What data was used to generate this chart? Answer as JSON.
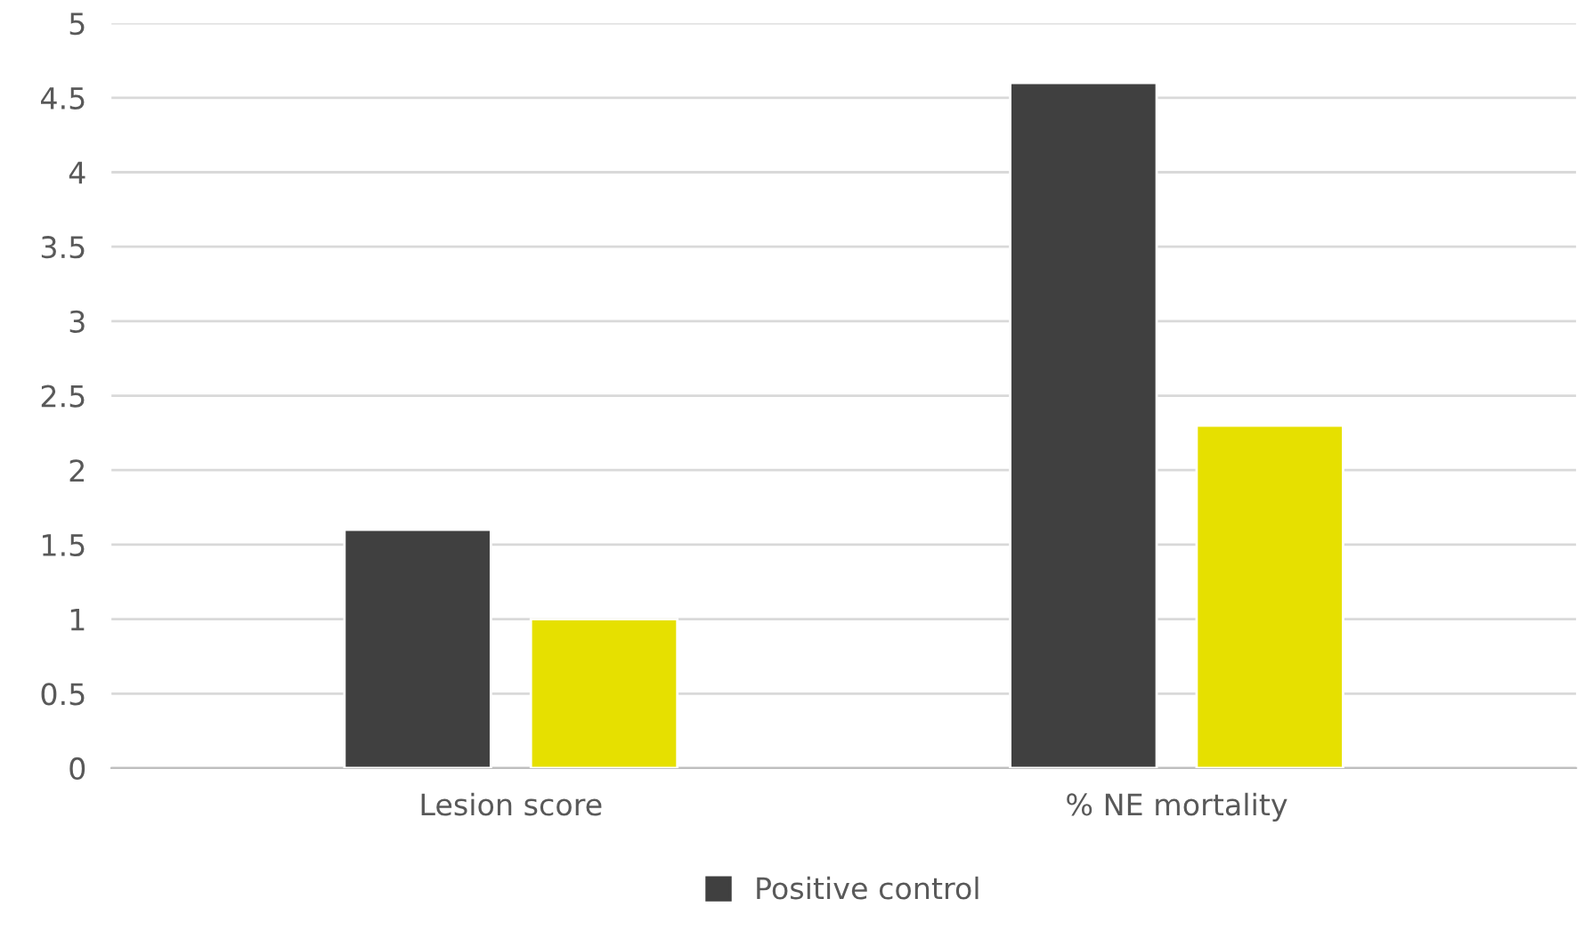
{
  "chart_data": {
    "type": "bar",
    "categories": [
      "Lesion score",
      "% NE mortality"
    ],
    "series": [
      {
        "name": "Positive control",
        "color": "#404040",
        "values": [
          1.6,
          4.6
        ]
      },
      {
        "color": "#e6e000",
        "values": [
          1.0,
          2.3
        ]
      }
    ],
    "ylim": [
      0,
      5
    ],
    "yticks": [
      0,
      0.5,
      1,
      1.5,
      2,
      2.5,
      3,
      3.5,
      4,
      4.5,
      5
    ],
    "grid": "y",
    "legend": "bottom"
  }
}
